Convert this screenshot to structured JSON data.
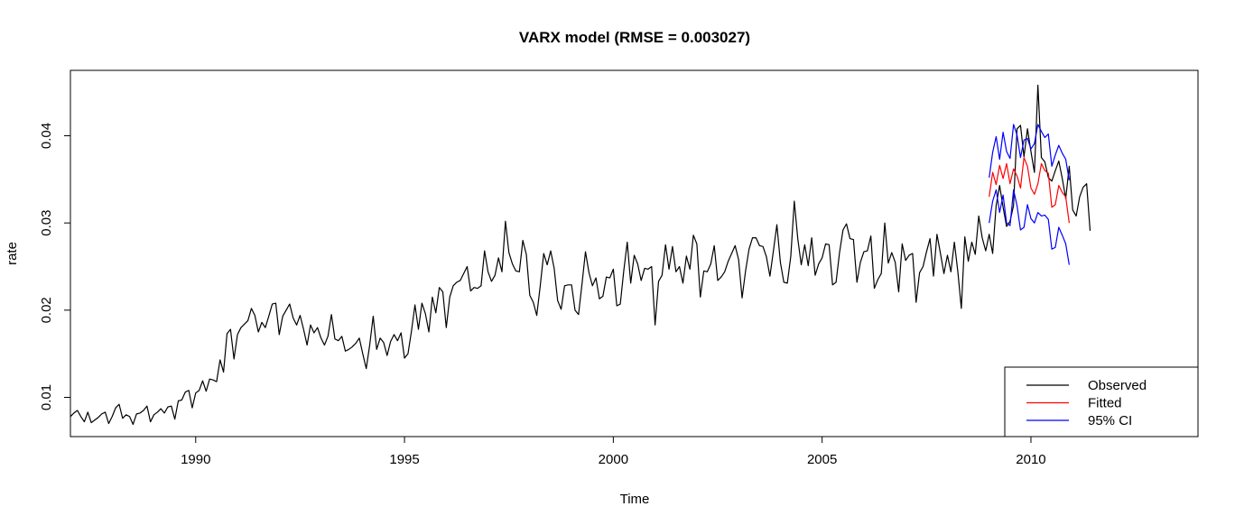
{
  "chart_data": {
    "type": "line",
    "title": "VARX model (RMSE = 0.003027)",
    "xlabel": "Time",
    "ylabel": "rate",
    "xlim": [
      1987.0,
      2014.0
    ],
    "ylim": [
      0.0055,
      0.0475
    ],
    "x_ticks": [
      1990,
      1995,
      2000,
      2005,
      2010
    ],
    "x_tick_labels": [
      "1990",
      "1995",
      "2000",
      "2005",
      "2010"
    ],
    "y_ticks": [
      0.01,
      0.02,
      0.03,
      0.04
    ],
    "y_tick_labels": [
      "0.01",
      "0.02",
      "0.03",
      "0.04"
    ],
    "grid": false,
    "legend_position": "bottom-right",
    "series": [
      {
        "name": "Observed",
        "color": "#000000",
        "x_start": 1987.0,
        "x_step": 0.0833333,
        "values": [
          0.0078,
          0.0082,
          0.0085,
          0.0078,
          0.0072,
          0.0083,
          0.0071,
          0.0074,
          0.0077,
          0.0081,
          0.0083,
          0.007,
          0.0078,
          0.0088,
          0.0092,
          0.0076,
          0.008,
          0.0078,
          0.0069,
          0.0081,
          0.0082,
          0.0085,
          0.009,
          0.0072,
          0.008,
          0.0083,
          0.0087,
          0.0082,
          0.0089,
          0.009,
          0.0075,
          0.0096,
          0.0097,
          0.0106,
          0.0108,
          0.0088,
          0.0105,
          0.0108,
          0.0119,
          0.0107,
          0.0121,
          0.012,
          0.0118,
          0.0143,
          0.0129,
          0.0173,
          0.0178,
          0.0144,
          0.0172,
          0.018,
          0.0184,
          0.0188,
          0.0202,
          0.0194,
          0.0175,
          0.0186,
          0.018,
          0.0193,
          0.0207,
          0.0208,
          0.0172,
          0.0193,
          0.02,
          0.0207,
          0.0191,
          0.0183,
          0.0194,
          0.0178,
          0.016,
          0.0183,
          0.0174,
          0.018,
          0.0168,
          0.016,
          0.017,
          0.0195,
          0.0167,
          0.0165,
          0.017,
          0.0153,
          0.0155,
          0.0158,
          0.0162,
          0.0168,
          0.015,
          0.0133,
          0.016,
          0.0193,
          0.0155,
          0.0168,
          0.0163,
          0.0148,
          0.0164,
          0.0172,
          0.0165,
          0.0174,
          0.0145,
          0.015,
          0.0176,
          0.0206,
          0.0178,
          0.0208,
          0.0196,
          0.0175,
          0.0215,
          0.0197,
          0.0226,
          0.0221,
          0.018,
          0.0215,
          0.0228,
          0.0232,
          0.0234,
          0.0242,
          0.025,
          0.0222,
          0.0226,
          0.0225,
          0.0228,
          0.0268,
          0.0244,
          0.0233,
          0.024,
          0.026,
          0.0244,
          0.0302,
          0.0266,
          0.0253,
          0.0245,
          0.0244,
          0.028,
          0.0264,
          0.0217,
          0.0209,
          0.0194,
          0.0228,
          0.0265,
          0.0252,
          0.0268,
          0.0248,
          0.0211,
          0.0201,
          0.0228,
          0.0229,
          0.0229,
          0.02,
          0.0195,
          0.023,
          0.0267,
          0.0243,
          0.0228,
          0.0237,
          0.0213,
          0.0216,
          0.0238,
          0.0237,
          0.0247,
          0.0205,
          0.0207,
          0.0245,
          0.0278,
          0.0231,
          0.0263,
          0.0253,
          0.0234,
          0.0248,
          0.0247,
          0.025,
          0.0183,
          0.0233,
          0.024,
          0.0275,
          0.0247,
          0.0273,
          0.0244,
          0.025,
          0.0231,
          0.0262,
          0.0247,
          0.0286,
          0.0276,
          0.0215,
          0.0245,
          0.0244,
          0.0253,
          0.0274,
          0.0234,
          0.0238,
          0.0244,
          0.0256,
          0.0265,
          0.0274,
          0.0258,
          0.0214,
          0.0245,
          0.027,
          0.0283,
          0.0283,
          0.0274,
          0.0273,
          0.0261,
          0.0239,
          0.0268,
          0.0298,
          0.0255,
          0.0232,
          0.0231,
          0.0262,
          0.0325,
          0.0282,
          0.0252,
          0.0275,
          0.0251,
          0.0283,
          0.024,
          0.0253,
          0.026,
          0.0276,
          0.0275,
          0.0229,
          0.0232,
          0.0266,
          0.0292,
          0.0299,
          0.0282,
          0.0281,
          0.0232,
          0.0255,
          0.0267,
          0.0268,
          0.0285,
          0.0225,
          0.0235,
          0.0242,
          0.03,
          0.0254,
          0.0266,
          0.0255,
          0.0221,
          0.0276,
          0.0257,
          0.0263,
          0.0265,
          0.0209,
          0.0243,
          0.025,
          0.0267,
          0.0282,
          0.0239,
          0.0287,
          0.0265,
          0.0242,
          0.0263,
          0.0244,
          0.0278,
          0.0244,
          0.0202,
          0.0284,
          0.0256,
          0.0278,
          0.0264,
          0.0308,
          0.0283,
          0.0268,
          0.0287,
          0.0265,
          0.032,
          0.0343,
          0.0318,
          0.0296,
          0.0302,
          0.032,
          0.0408,
          0.0412,
          0.0376,
          0.0408,
          0.0382,
          0.0358,
          0.0458,
          0.0375,
          0.037,
          0.0352,
          0.0348,
          0.036,
          0.0371,
          0.0351,
          0.0328,
          0.0365,
          0.0315,
          0.0308,
          0.033,
          0.0341,
          0.0345,
          0.0291
        ]
      },
      {
        "name": "Fitted",
        "color": "#ff0000",
        "x_start": 2009.0,
        "x_step": 0.0833333,
        "values": [
          0.033,
          0.0358,
          0.0344,
          0.0366,
          0.0351,
          0.0368,
          0.0345,
          0.0362,
          0.0354,
          0.034,
          0.0375,
          0.0365,
          0.034,
          0.0333,
          0.0345,
          0.0368,
          0.036,
          0.0357,
          0.0318,
          0.0321,
          0.0343,
          0.0335,
          0.033,
          0.03
        ]
      },
      {
        "name": "95% CI",
        "color": "#0000ff",
        "x_start": 2009.0,
        "x_step": 0.0833333,
        "upper": [
          0.0352,
          0.0381,
          0.0399,
          0.0373,
          0.0404,
          0.0382,
          0.0374,
          0.0413,
          0.0401,
          0.0375,
          0.0395,
          0.0397,
          0.0385,
          0.0391,
          0.0413,
          0.0405,
          0.0398,
          0.0402,
          0.0365,
          0.0378,
          0.0389,
          0.038,
          0.0373,
          0.0349
        ],
        "lower": [
          0.03,
          0.0325,
          0.0338,
          0.0312,
          0.0332,
          0.03,
          0.0297,
          0.0338,
          0.032,
          0.0292,
          0.0295,
          0.0321,
          0.0305,
          0.03,
          0.0312,
          0.0308,
          0.0309,
          0.0304,
          0.027,
          0.0272,
          0.0295,
          0.0286,
          0.0276,
          0.0252
        ]
      }
    ],
    "legend": {
      "entries": [
        {
          "label": "Observed",
          "color": "#000000"
        },
        {
          "label": "Fitted",
          "color": "#ff0000"
        },
        {
          "label": "95% CI",
          "color": "#0000ff"
        }
      ]
    }
  }
}
